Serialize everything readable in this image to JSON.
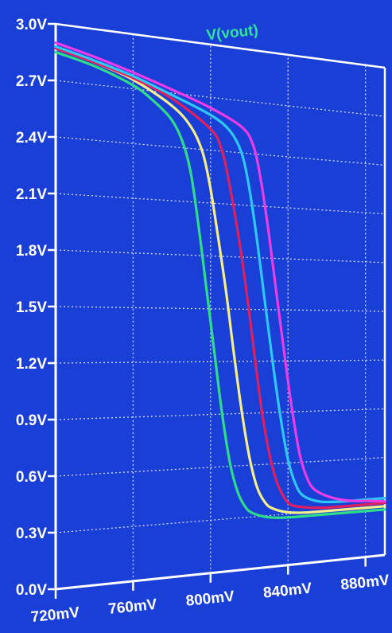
{
  "chart_data": {
    "type": "line",
    "title": "",
    "xlabel": "",
    "ylabel": "",
    "trace_label": "V(vout)",
    "x_unit": "mV",
    "y_unit": "V",
    "xlim": [
      720,
      890
    ],
    "ylim": [
      0,
      3
    ],
    "grid": true,
    "x_ticks": [
      720,
      760,
      800,
      840,
      880
    ],
    "x_tick_labels": [
      "720mV",
      "760mV",
      "800mV",
      "840mV",
      "880mV"
    ],
    "y_ticks": [
      0,
      0.3,
      0.6,
      0.9,
      1.2,
      1.5,
      1.8,
      2.1,
      2.4,
      2.7,
      3.0
    ],
    "y_tick_labels": [
      "0.0V",
      "0.3V",
      "0.6V",
      "0.9V",
      "1.2V",
      "1.5V",
      "1.8V",
      "2.1V",
      "2.4V",
      "2.7V",
      "3.0V"
    ],
    "colors": {
      "background": "#1a3fd6",
      "axes": "#ffffff",
      "grid": "#d7dcf7",
      "trace_label": "#2fe39a"
    },
    "series": [
      {
        "color": "#2fdc8a",
        "x": [
          720,
          740,
          760,
          770,
          780,
          786,
          790,
          794,
          798,
          802,
          806,
          810,
          814,
          818,
          822,
          830,
          840,
          860,
          890
        ],
        "y": [
          2.85,
          2.8,
          2.72,
          2.65,
          2.55,
          2.42,
          2.25,
          1.95,
          1.6,
          1.25,
          0.9,
          0.62,
          0.45,
          0.36,
          0.32,
          0.29,
          0.28,
          0.28,
          0.28
        ]
      },
      {
        "color": "#f5ee8a",
        "x": [
          720,
          740,
          760,
          780,
          790,
          796,
          800,
          804,
          808,
          812,
          816,
          820,
          824,
          828,
          832,
          840,
          850,
          870,
          890
        ],
        "y": [
          2.87,
          2.82,
          2.75,
          2.63,
          2.52,
          2.38,
          2.18,
          1.9,
          1.6,
          1.25,
          0.92,
          0.65,
          0.47,
          0.38,
          0.34,
          0.31,
          0.3,
          0.3,
          0.3
        ]
      },
      {
        "color": "#e0205e",
        "x": [
          720,
          740,
          760,
          780,
          800,
          806,
          810,
          814,
          818,
          822,
          826,
          830,
          834,
          838,
          842,
          850,
          860,
          880,
          890
        ],
        "y": [
          2.87,
          2.82,
          2.76,
          2.67,
          2.52,
          2.4,
          2.2,
          1.95,
          1.65,
          1.3,
          0.95,
          0.68,
          0.5,
          0.4,
          0.35,
          0.33,
          0.32,
          0.32,
          0.32
        ]
      },
      {
        "color": "#2ec8f5",
        "x": [
          720,
          740,
          760,
          780,
          800,
          810,
          816,
          820,
          824,
          828,
          832,
          836,
          840,
          844,
          848,
          856,
          866,
          880,
          890
        ],
        "y": [
          2.88,
          2.83,
          2.77,
          2.69,
          2.6,
          2.52,
          2.4,
          2.2,
          1.9,
          1.55,
          1.2,
          0.88,
          0.62,
          0.47,
          0.4,
          0.36,
          0.35,
          0.35,
          0.35
        ]
      },
      {
        "color": "#ec3ce6",
        "x": [
          720,
          740,
          760,
          780,
          800,
          816,
          822,
          826,
          830,
          834,
          838,
          842,
          846,
          850,
          854,
          862,
          872,
          882,
          890
        ],
        "y": [
          2.9,
          2.85,
          2.79,
          2.72,
          2.64,
          2.55,
          2.45,
          2.25,
          1.95,
          1.6,
          1.25,
          0.92,
          0.65,
          0.5,
          0.43,
          0.38,
          0.35,
          0.34,
          0.33
        ]
      }
    ]
  }
}
